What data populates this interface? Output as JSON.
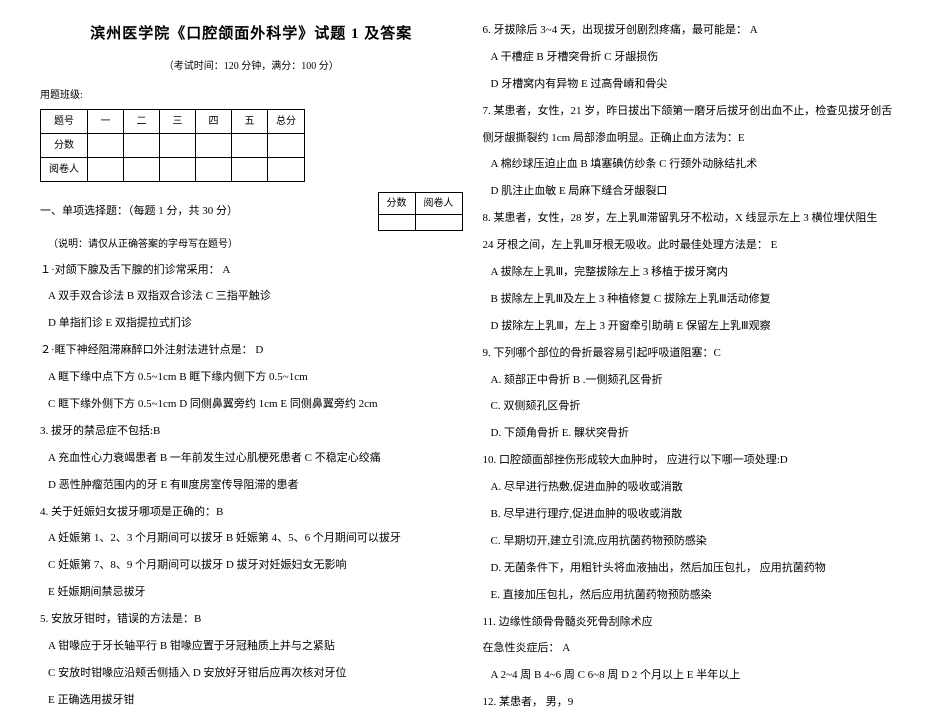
{
  "left": {
    "title": "滨州医学院《口腔颌面外科学》试题  1 及答案",
    "subtitle": "（考试时间：120 分钟，满分：100 分）",
    "classLabel": "用题班级:",
    "scoreTable": {
      "r1": [
        "题号",
        "一",
        "二",
        "三",
        "四",
        "五",
        "总分"
      ],
      "r2": "分数",
      "r3": "阅卷人"
    },
    "section1": "一、单项选择题：（每题 1 分，共 30 分）",
    "miniTable": {
      "c1": "分数",
      "c2": "阅卷人"
    },
    "note": "（说明：请仅从正确答案的字母写在题号）",
    "q1": "１·对颌下腺及舌下腺的扪诊常采用：  A",
    "q1opts1": "A 双手双合诊法      B      双指双合诊法      C      三指平触诊",
    "q1opts2": "D 单指扪诊  E 双指提拉式扪诊",
    "q2": "２·眶下神经阻滞麻醉口外注射法进针点是：  D",
    "q2a": "A 眶下缘中点下方 0.5~1cm B 眶下缘内侧下方 0.5~1cm",
    "q2b": "C 眶下缘外侧下方 0.5~1cm D 同侧鼻翼旁约 1cm E 同侧鼻翼旁约 2cm",
    "q3": "3.  拔牙的禁忌症不包括:B",
    "q3a": "A 充血性心力衰竭患者 B 一年前发生过心肌梗死患者 C 不稳定心绞痛",
    "q3b": "D 恶性肿瘤范围内的牙 E 有Ⅲ度房室传导阻滞的患者",
    "q4": "4.  关于妊娠妇女拔牙哪项是正确的：B",
    "q4a": "A 妊娠第 1、2、3 个月期间可以拔牙 B 妊娠第 4、5、6 个月期间可以拔牙",
    "q4b": "C 妊娠第 7、8、9 个月期间可以拔牙      D      拔牙对妊娠妇女无影响",
    "q4c": "E 妊娠期间禁忌拔牙",
    "q5": "5.  安放牙钳时，错误的方法是：B",
    "q5a": "A 钳喙应于牙长轴平行 B 钳喙应置于牙冠釉质上并与之紧贴",
    "q5b": "C 安放时钳喙应沿颊舌侧插入      D      安放好牙钳后应再次核对牙位",
    "q5c": "E 正确选用拔牙钳"
  },
  "right": {
    "q6": "6.  牙拔除后 3~4 天，出现拔牙创剧烈疼痛，最可能是：    A",
    "q6a": "A 干槽症 B 牙槽突骨折 C 牙龈损伤",
    "q6b": "D 牙槽窝内有异物      E 过高骨嵴和骨尖",
    "q7": "7.  某患者，女性，21 岁，昨日拔出下颌第一磨牙后拔牙创出血不止，检查见拔牙创舌",
    "q7x": "侧牙龈撕裂约 1cm 局部渗血明显。正确止血方法为：E",
    "q7a": "A 棉纱球压迫止血      B      填塞碘仿纱条      C      行颈外动脉结扎术",
    "q7b": "D 肌注止血敏  E 局麻下缝合牙龈裂口",
    "q8": "8.  某患者，女性，28 岁，左上乳Ⅲ滞留乳牙不松动，X 线显示左上 3 横位埋伏阻生",
    "q8x": "24 牙根之间，左上乳Ⅲ牙根无吸收。此时最佳处理方法是：    E",
    "q8a": "A 拔除左上乳Ⅲ，完整拔除左上 3 移植于拔牙窝内",
    "q8b": "B 拔除左上乳Ⅲ及左上 3 种植修复 C 拔除左上乳Ⅲ活动修复",
    "q8c": "D 拔除左上乳Ⅲ，左上 3 开窗牵引助萌 E 保留左上乳Ⅲ观察",
    "q9": "9.  下列哪个部位的骨折最容易引起呼吸道阻塞：C",
    "q9a": "A.                                                颏部正中骨折  B .一侧颏孔区骨折",
    "q9b": "                                                                            C.     双侧颏孔区骨折",
    "q9c": "D. 下颌角骨折        E.        髁状突骨折",
    "q10": "10.    口腔颌面部挫伤形成较大血肿时，  应进行以下哪一项处理:D",
    "q10a": "A.  尽早进行热敷,促进血肿的吸收或消散",
    "q10b": "B.  尽早进行理疗,促进血肿的吸收或消散",
    "q10c": "C.  早期切开,建立引流,应用抗菌药物预防感染",
    "q10d": "D.  无菌条件下，用粗针头将血液抽出，然后加压包扎，  应用抗菌药物",
    "q10e": "E.  直接加压包扎，然后应用抗菌药物预防感染",
    "q11": "11.                                                                边缘性颌骨骨髓炎死骨刮除术应",
    "q11x": "在急性炎症后：          A",
    "q11a": "A 2~4 周 B 4~6 周  C 6~8 周 D 2 个月以上                E        半年以上",
    "q12": "12.                                                                            某患者，  男，9"
  }
}
